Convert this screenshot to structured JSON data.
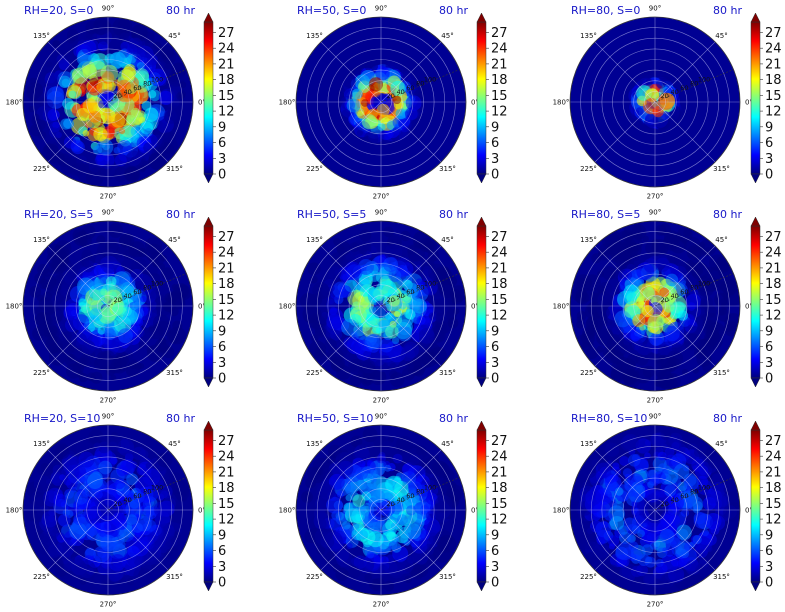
{
  "figure": {
    "colorbar_colors": [
      "#00007f",
      "#0000ff",
      "#007fff",
      "#00ffff",
      "#7fff7f",
      "#ffff00",
      "#ff7f00",
      "#ff0000",
      "#7f0000"
    ],
    "angle_labels": [
      "90°",
      "45°",
      "0°",
      "315°",
      "270°",
      "225°",
      "180°",
      "135°"
    ],
    "radial_labels": [
      "20",
      "40",
      "60",
      "80",
      "100"
    ],
    "colorbar_ticks": [
      "0",
      "3",
      "6",
      "9",
      "12",
      "15",
      "18",
      "21",
      "24",
      "27"
    ]
  },
  "chart_data": [
    {
      "type": "heatmap",
      "projection": "polar",
      "title": "RH=20, S=0",
      "time_label": "80 hr",
      "rh": 20,
      "s": 0,
      "zlim": [
        0,
        29
      ],
      "eye_radius": 0.1,
      "peak_radius": 0.28,
      "peak_value": 26,
      "spread": 0.55,
      "extent": 0.92
    },
    {
      "type": "heatmap",
      "projection": "polar",
      "title": "RH=50, S=0",
      "time_label": "80 hr",
      "rh": 50,
      "s": 0,
      "zlim": [
        0,
        29
      ],
      "eye_radius": 0.1,
      "peak_radius": 0.17,
      "peak_value": 28,
      "spread": 0.28,
      "extent": 0.45
    },
    {
      "type": "heatmap",
      "projection": "polar",
      "title": "RH=80, S=0",
      "time_label": "80 hr",
      "rh": 80,
      "s": 0,
      "zlim": [
        0,
        29
      ],
      "eye_radius": 0.05,
      "peak_radius": 0.1,
      "peak_value": 26,
      "spread": 0.15,
      "extent": 0.25
    },
    {
      "type": "heatmap",
      "projection": "polar",
      "title": "RH=20, S=5",
      "time_label": "80 hr",
      "rh": 20,
      "s": 5,
      "zlim": [
        0,
        29
      ],
      "eye_radius": 0.05,
      "peak_radius": 0.15,
      "peak_value": 14,
      "spread": 0.5,
      "extent": 0.9
    },
    {
      "type": "heatmap",
      "projection": "polar",
      "title": "RH=50, S=5",
      "time_label": "80 hr",
      "rh": 50,
      "s": 5,
      "zlim": [
        0,
        29
      ],
      "eye_radius": 0.08,
      "peak_radius": 0.22,
      "peak_value": 15,
      "spread": 0.55,
      "extent": 0.92
    },
    {
      "type": "heatmap",
      "projection": "polar",
      "title": "RH=80, S=5",
      "time_label": "80 hr",
      "rh": 80,
      "s": 5,
      "zlim": [
        0,
        29
      ],
      "eye_radius": 0.05,
      "peak_radius": 0.14,
      "peak_value": 24,
      "spread": 0.45,
      "extent": 0.95
    },
    {
      "type": "heatmap",
      "projection": "polar",
      "title": "RH=20, S=10",
      "time_label": "80 hr",
      "rh": 20,
      "s": 10,
      "zlim": [
        0,
        29
      ],
      "eye_radius": 0.05,
      "peak_radius": 0.4,
      "peak_value": 6,
      "spread": 0.6,
      "extent": 0.9
    },
    {
      "type": "heatmap",
      "projection": "polar",
      "title": "RH=50, S=10",
      "time_label": "80 hr",
      "rh": 50,
      "s": 10,
      "zlim": [
        0,
        29
      ],
      "eye_radius": 0.05,
      "peak_radius": 0.3,
      "peak_value": 11,
      "spread": 0.55,
      "extent": 0.9
    },
    {
      "type": "heatmap",
      "projection": "polar",
      "title": "RH=80, S=10",
      "time_label": "80 hr",
      "rh": 80,
      "s": 10,
      "zlim": [
        0,
        29
      ],
      "eye_radius": 0.05,
      "peak_radius": 0.45,
      "peak_value": 7,
      "spread": 0.6,
      "extent": 0.95
    }
  ]
}
